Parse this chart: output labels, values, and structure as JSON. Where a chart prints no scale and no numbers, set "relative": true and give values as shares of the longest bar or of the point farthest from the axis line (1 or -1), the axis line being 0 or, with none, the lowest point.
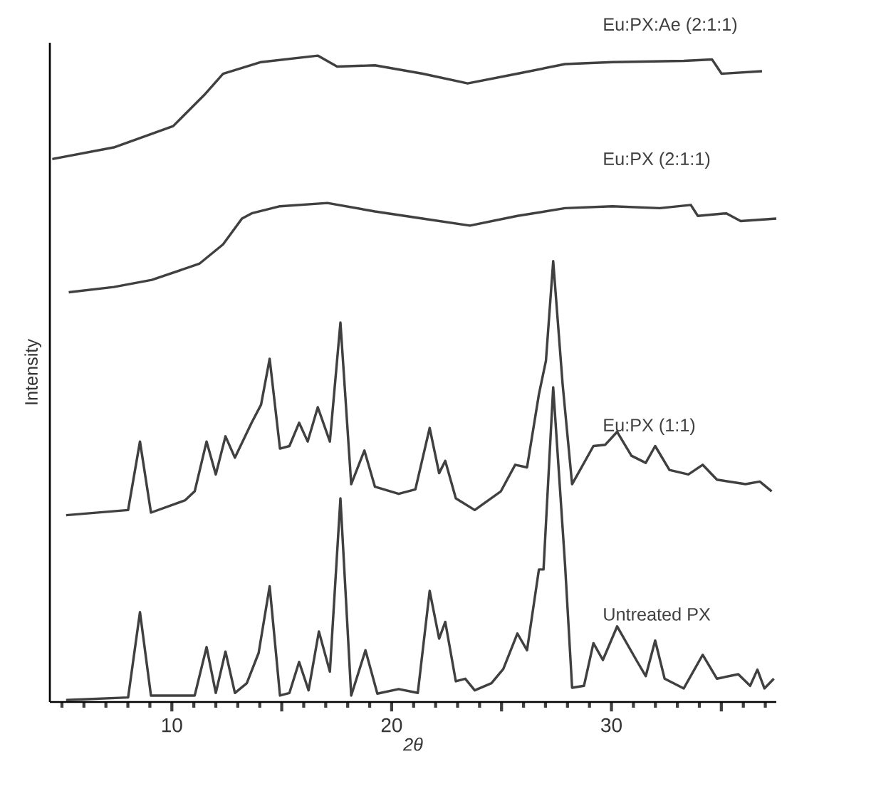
{
  "chart_data": {
    "type": "line",
    "relative": true,
    "xlabel": "2θ",
    "ylabel": "Intensity",
    "xlim": [
      4.45,
      37.5
    ],
    "xticks": [
      10,
      {
        "value": 15,
        "label": null
      },
      20,
      {
        "value": 25,
        "label": null
      },
      30,
      {
        "value": 35,
        "label": null
      }
    ],
    "series": [
      {
        "name": "Eu:PX:Ae (2:1:1)",
        "color": "#404040",
        "x": [
          4.56,
          7.36,
          10.06,
          11.47,
          12.33,
          14.06,
          16.65,
          17.52,
          19.24,
          21.41,
          23.46,
          25.72,
          27.89,
          30.04,
          33.29,
          34.58,
          35.01,
          36.85
        ],
        "values": [
          0.84,
          0.858,
          0.891,
          0.939,
          0.972,
          0.99,
          1,
          0.983,
          0.985,
          0.972,
          0.957,
          0.972,
          0.987,
          0.99,
          0.992,
          0.994,
          0.972,
          0.976
        ]
      },
      {
        "name": "Eu:PX (2:1:1)",
        "color": "#404040",
        "x": [
          5.31,
          7.36,
          9.09,
          11.25,
          12.33,
          13.19,
          13.63,
          14.92,
          17.08,
          19.24,
          21.41,
          23.56,
          25.72,
          27.89,
          30.04,
          32.2,
          33.61,
          33.93,
          35.23,
          35.88,
          37.5
        ],
        "values": [
          0.634,
          0.642,
          0.653,
          0.678,
          0.708,
          0.748,
          0.756,
          0.767,
          0.772,
          0.759,
          0.748,
          0.737,
          0.752,
          0.764,
          0.767,
          0.764,
          0.769,
          0.752,
          0.756,
          0.744,
          0.748
        ]
      },
      {
        "name": "Eu:PX (1:1)",
        "color": "#404040",
        "x": [
          5.19,
          8.01,
          8.55,
          9.05,
          10.6,
          11.04,
          11.58,
          12.0,
          12.44,
          12.87,
          13.63,
          14.06,
          14.45,
          14.92,
          15.35,
          15.79,
          16.18,
          16.64,
          17.19,
          17.67,
          18.16,
          18.76,
          19.24,
          20.32,
          21.08,
          21.73,
          22.16,
          22.44,
          22.92,
          23.78,
          24.97,
          25.62,
          26.16,
          26.7,
          27.02,
          27.35,
          27.78,
          28.21,
          29.18,
          29.72,
          30.26,
          30.91,
          31.56,
          31.99,
          32.64,
          33.5,
          34.15,
          34.8,
          36.1,
          36.75,
          37.29
        ],
        "values": [
          0.289,
          0.297,
          0.403,
          0.293,
          0.312,
          0.326,
          0.403,
          0.352,
          0.411,
          0.378,
          0.432,
          0.46,
          0.531,
          0.392,
          0.396,
          0.432,
          0.403,
          0.456,
          0.403,
          0.587,
          0.337,
          0.389,
          0.333,
          0.322,
          0.329,
          0.424,
          0.354,
          0.373,
          0.315,
          0.297,
          0.326,
          0.367,
          0.363,
          0.476,
          0.528,
          0.682,
          0.491,
          0.337,
          0.396,
          0.398,
          0.418,
          0.381,
          0.37,
          0.396,
          0.359,
          0.352,
          0.367,
          0.344,
          0.337,
          0.341,
          0.326
        ]
      },
      {
        "name": "Untreated PX",
        "color": "#404040",
        "x": [
          5.19,
          8.01,
          8.55,
          9.05,
          11.04,
          11.58,
          12.0,
          12.44,
          12.87,
          13.41,
          13.95,
          14.45,
          14.92,
          15.35,
          15.79,
          16.22,
          16.69,
          17.19,
          17.67,
          18.16,
          18.81,
          19.35,
          20.32,
          21.19,
          21.73,
          22.16,
          22.44,
          22.92,
          23.35,
          23.78,
          24.54,
          25.08,
          25.72,
          26.16,
          26.7,
          26.91,
          27.35,
          27.89,
          28.21,
          28.75,
          29.18,
          29.61,
          30.26,
          31.13,
          31.56,
          31.99,
          32.42,
          33.29,
          34.15,
          34.8,
          35.77,
          36.31,
          36.64,
          36.96,
          37.39
        ],
        "values": [
          0.003,
          0.007,
          0.139,
          0.01,
          0.01,
          0.085,
          0.014,
          0.078,
          0.014,
          0.029,
          0.076,
          0.179,
          0.01,
          0.014,
          0.062,
          0.018,
          0.109,
          0.047,
          0.315,
          0.01,
          0.08,
          0.013,
          0.02,
          0.014,
          0.172,
          0.098,
          0.124,
          0.032,
          0.036,
          0.018,
          0.029,
          0.051,
          0.106,
          0.08,
          0.205,
          0.205,
          0.487,
          0.212,
          0.022,
          0.025,
          0.091,
          0.065,
          0.117,
          0.065,
          0.04,
          0.095,
          0.036,
          0.021,
          0.073,
          0.036,
          0.043,
          0.025,
          0.05,
          0.021,
          0.036
        ]
      }
    ]
  }
}
